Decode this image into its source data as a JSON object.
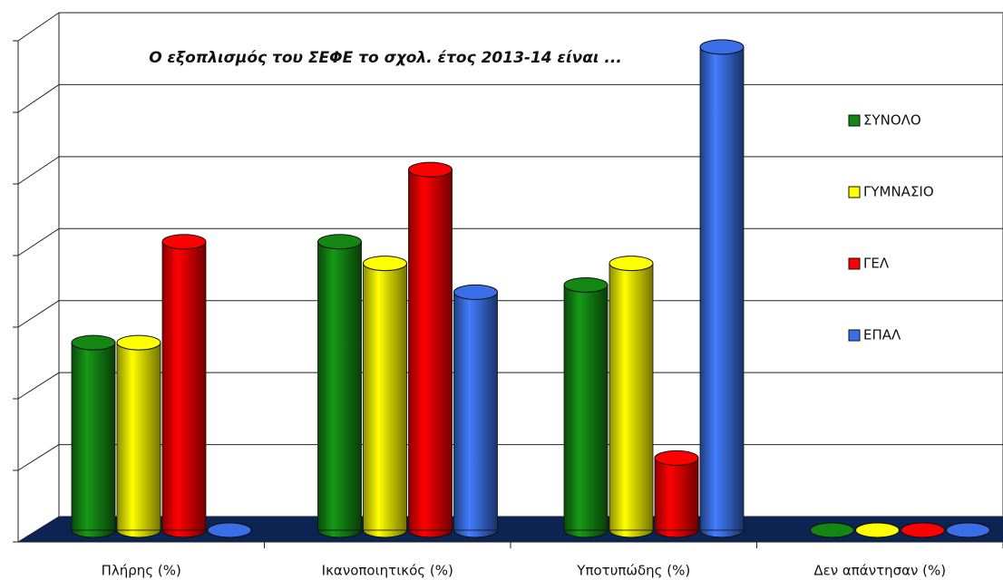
{
  "chart_data": {
    "type": "bar",
    "title": "Ο εξοπλισμός του ΣΕΦΕ το σχολ. έτος 2013-14 είναι ...",
    "categories": [
      "Πλήρης (%)",
      "Ικανοποιητικός (%)",
      "Υποτυπώδης (%)",
      "Δεν απάντησαν (%)"
    ],
    "series": [
      {
        "name": "ΣΥΝΟΛΟ",
        "color": "#138613",
        "values": [
          2.6,
          4.0,
          3.4,
          0
        ]
      },
      {
        "name": "ΓΥΜΝΑΣΙΟ",
        "color": "#ffff00",
        "values": [
          2.6,
          3.7,
          3.7,
          0
        ]
      },
      {
        "name": "ΓΕΛ",
        "color": "#ff0000",
        "values": [
          4.0,
          5.0,
          1.0,
          0
        ]
      },
      {
        "name": "ΕΠΑΛ",
        "color": "#3a6ee8",
        "values": [
          0,
          3.3,
          6.7,
          0
        ]
      }
    ],
    "ylim": [
      0,
      7
    ],
    "yticks": [
      0,
      1,
      2,
      3,
      4,
      5,
      6,
      7
    ],
    "grid": true,
    "legend": "right"
  }
}
